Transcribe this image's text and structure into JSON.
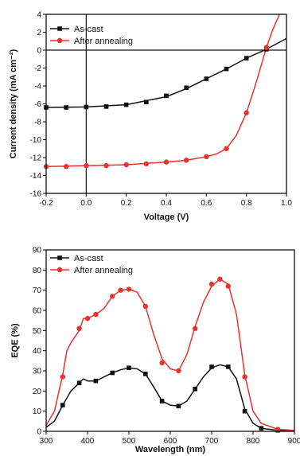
{
  "chart_data": [
    {
      "type": "line",
      "xlabel": "Voltage (V)",
      "ylabel": "Current density (mA cm⁻²)",
      "xlim": [
        -0.2,
        1.0
      ],
      "ylim": [
        -16,
        4
      ],
      "xticks": [
        -0.2,
        0.0,
        0.2,
        0.4,
        0.6,
        0.8,
        1.0
      ],
      "xtick_labels": [
        "-0.2",
        "0.0",
        "0.2",
        "0.4",
        "0.6",
        "0.8",
        "1.0"
      ],
      "yticks": [
        -16,
        -14,
        -12,
        -10,
        -8,
        -6,
        -4,
        -2,
        0,
        2,
        4
      ],
      "ytick_labels": [
        "-16",
        "-14",
        "-12",
        "-10",
        "-8",
        "-6",
        "-4",
        "-2",
        "0",
        "2",
        "4"
      ],
      "zero_lines": true,
      "legend_position": "top-left",
      "series": [
        {
          "name": "As-cast",
          "color": "#111111",
          "marker": "square",
          "line": [
            [
              -0.2,
              -6.4
            ],
            [
              0.0,
              -6.35
            ],
            [
              0.2,
              -6.1
            ],
            [
              0.4,
              -5.2
            ],
            [
              0.5,
              -4.3
            ],
            [
              0.6,
              -3.2
            ],
            [
              0.7,
              -2.1
            ],
            [
              0.8,
              -0.9
            ],
            [
              0.9,
              0.1
            ],
            [
              1.0,
              1.3
            ]
          ],
          "markers": [
            [
              -0.2,
              -6.4
            ],
            [
              -0.1,
              -6.4
            ],
            [
              0.0,
              -6.35
            ],
            [
              0.1,
              -6.3
            ],
            [
              0.2,
              -6.1
            ],
            [
              0.3,
              -5.8
            ],
            [
              0.4,
              -5.1
            ],
            [
              0.5,
              -4.2
            ],
            [
              0.6,
              -3.2
            ],
            [
              0.7,
              -2.1
            ],
            [
              0.8,
              -0.9
            ],
            [
              0.9,
              0.1
            ]
          ]
        },
        {
          "name": "After annealing",
          "color": "#e8322f",
          "marker": "circle",
          "line": [
            [
              -0.2,
              -13.0
            ],
            [
              0.0,
              -12.9
            ],
            [
              0.2,
              -12.8
            ],
            [
              0.4,
              -12.5
            ],
            [
              0.5,
              -12.3
            ],
            [
              0.6,
              -11.9
            ],
            [
              0.65,
              -11.6
            ],
            [
              0.7,
              -11.0
            ],
            [
              0.75,
              -9.5
            ],
            [
              0.8,
              -7.0
            ],
            [
              0.85,
              -3.5
            ],
            [
              0.9,
              0.3
            ],
            [
              0.93,
              2.2
            ],
            [
              0.965,
              4.0
            ]
          ],
          "markers": [
            [
              -0.2,
              -13.0
            ],
            [
              -0.1,
              -13.0
            ],
            [
              0.0,
              -12.9
            ],
            [
              0.1,
              -12.9
            ],
            [
              0.2,
              -12.8
            ],
            [
              0.3,
              -12.7
            ],
            [
              0.4,
              -12.5
            ],
            [
              0.5,
              -12.3
            ],
            [
              0.6,
              -11.9
            ],
            [
              0.7,
              -11.0
            ],
            [
              0.8,
              -7.0
            ],
            [
              0.9,
              0.3
            ]
          ]
        }
      ]
    },
    {
      "type": "line",
      "xlabel": "Wavelength (nm)",
      "ylabel": "EQE (%)",
      "xlim": [
        300,
        900
      ],
      "ylim": [
        0,
        90
      ],
      "xticks": [
        300,
        400,
        500,
        600,
        700,
        800,
        900
      ],
      "xtick_labels": [
        "300",
        "400",
        "500",
        "600",
        "700",
        "800",
        "900"
      ],
      "yticks": [
        0,
        10,
        20,
        30,
        40,
        50,
        60,
        70,
        80,
        90
      ],
      "ytick_labels": [
        "0",
        "10",
        "20",
        "30",
        "40",
        "50",
        "60",
        "70",
        "80",
        "90"
      ],
      "legend_position": "top-left",
      "series": [
        {
          "name": "As-cast",
          "color": "#111111",
          "marker": "square",
          "line": [
            [
              300,
              2
            ],
            [
              320,
              5
            ],
            [
              340,
              13
            ],
            [
              360,
              20
            ],
            [
              380,
              24
            ],
            [
              390,
              26
            ],
            [
              400,
              25
            ],
            [
              420,
              25
            ],
            [
              440,
              27
            ],
            [
              460,
              29
            ],
            [
              480,
              30.5
            ],
            [
              500,
              31.5
            ],
            [
              520,
              31
            ],
            [
              540,
              28.5
            ],
            [
              560,
              22
            ],
            [
              580,
              15
            ],
            [
              600,
              13
            ],
            [
              620,
              12.5
            ],
            [
              640,
              15
            ],
            [
              660,
              21
            ],
            [
              680,
              27
            ],
            [
              700,
              31.5
            ],
            [
              720,
              33
            ],
            [
              740,
              32
            ],
            [
              760,
              26
            ],
            [
              780,
              11
            ],
            [
              800,
              4
            ],
            [
              820,
              1.5
            ],
            [
              860,
              0.5
            ],
            [
              900,
              0.3
            ]
          ],
          "markers": [
            [
              340,
              13
            ],
            [
              380,
              24
            ],
            [
              420,
              25
            ],
            [
              460,
              29
            ],
            [
              500,
              31.5
            ],
            [
              540,
              28.5
            ],
            [
              580,
              15
            ],
            [
              620,
              12.5
            ],
            [
              660,
              21
            ],
            [
              700,
              32
            ],
            [
              740,
              32
            ],
            [
              780,
              10
            ],
            [
              820,
              1.5
            ],
            [
              860,
              0.5
            ]
          ]
        },
        {
          "name": "After annealing",
          "color": "#e8322f",
          "marker": "circle",
          "line": [
            [
              300,
              3
            ],
            [
              320,
              10
            ],
            [
              340,
              28
            ],
            [
              350,
              40
            ],
            [
              360,
              44
            ],
            [
              380,
              50
            ],
            [
              390,
              56
            ],
            [
              400,
              56
            ],
            [
              410,
              57
            ],
            [
              420,
              58
            ],
            [
              440,
              61
            ],
            [
              460,
              67
            ],
            [
              480,
              70
            ],
            [
              500,
              70.5
            ],
            [
              520,
              69
            ],
            [
              540,
              62
            ],
            [
              560,
              48
            ],
            [
              580,
              36
            ],
            [
              600,
              31
            ],
            [
              620,
              30
            ],
            [
              640,
              38
            ],
            [
              660,
              52
            ],
            [
              680,
              64
            ],
            [
              700,
              72
            ],
            [
              720,
              75.5
            ],
            [
              740,
              73
            ],
            [
              760,
              58
            ],
            [
              780,
              28
            ],
            [
              800,
              10
            ],
            [
              820,
              4
            ],
            [
              860,
              1
            ],
            [
              900,
              0.5
            ]
          ],
          "markers": [
            [
              340,
              27
            ],
            [
              380,
              51
            ],
            [
              400,
              56
            ],
            [
              420,
              58
            ],
            [
              460,
              67
            ],
            [
              480,
              70
            ],
            [
              500,
              70.5
            ],
            [
              540,
              62
            ],
            [
              580,
              34
            ],
            [
              620,
              30
            ],
            [
              660,
              51
            ],
            [
              700,
              73
            ],
            [
              720,
              75.5
            ],
            [
              740,
              72
            ],
            [
              780,
              27
            ],
            [
              860,
              1
            ]
          ]
        }
      ]
    }
  ]
}
